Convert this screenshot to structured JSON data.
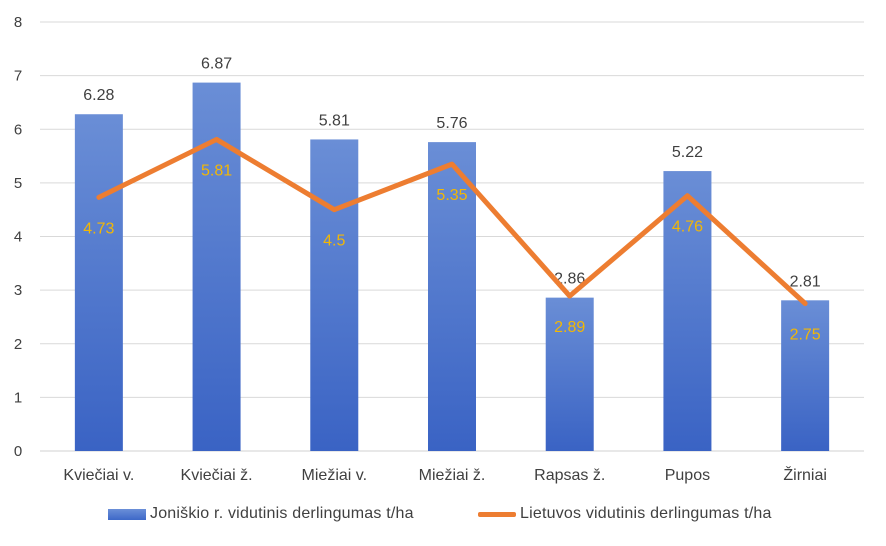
{
  "chart_data": {
    "type": "bar",
    "categories": [
      "Kviečiai v.",
      "Kviečiai ž.",
      "Miežiai v.",
      "Miežiai ž.",
      "Rapsas ž.",
      "Pupos",
      "Žirniai"
    ],
    "series": [
      {
        "name": "Joniškio r. vidutinis derlingumas t/ha",
        "type": "bar",
        "values": [
          6.28,
          6.87,
          5.81,
          5.76,
          2.86,
          5.22,
          2.81
        ],
        "color": "#4472c4"
      },
      {
        "name": "Lietuvos vidutinis derlingumas t/ha",
        "type": "line",
        "values": [
          4.73,
          5.81,
          4.5,
          5.35,
          2.89,
          4.76,
          2.75
        ],
        "color": "#ed7d31"
      }
    ],
    "ylim": [
      0,
      8
    ],
    "yticks": [
      0,
      1,
      2,
      3,
      4,
      5,
      6,
      7,
      8
    ],
    "grid": true,
    "legend_position": "bottom",
    "bar_label_color": "#404040",
    "line_label_color": "#f2b705"
  }
}
